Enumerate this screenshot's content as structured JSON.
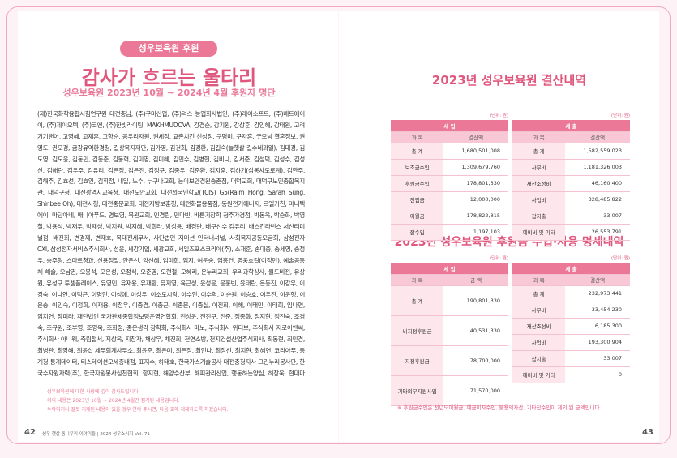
{
  "left": {
    "badge": "성우보육원 후원",
    "title": "감사가 흐르는 울타리",
    "subtitle": "성우보육원 2023년 10월 ~ 2024년 4월 후원자 명단",
    "donors": "(재)한국화학융합시험연구원 대전충남, (주)구마산업, (주)덕스 농업회사법인, (주)레이소프트, (주)베트에이이, (주)제이오텍, (주)코엔, (주)한빛라이팅, MAKHMUDOVA, 강경순, 강기원, 강상훈, 강인혜, 강태원, 고려기기랜어, 고영혜, 고재훈, 고향순, 공우리자원, 권세정, 교촌치킨 신성점, 구명미, 구자흔, 굿모닝 결혼정보, 권영도, 권오경, 금강유역환경청, 길상복지재단, 김가영, 김건희, 김경환, 김길숙(늘햇살 길수네과일), 김대경, 김도영, 김도윤, 김동민, 김동춘, 김동혁, 김미영, 김미혜, 김민수, 김병현, 김비나, 김서준, 김성덕, 김성수, 김성신, 김애란, 김우주, 김유리, 김은정, 김은진, 김정구, 김종우, 김준환, 김지훈, 김하기(심봉사도로계), 김한주, 김해주, 김효선, 김효인, 김휘정, 내일, 노수, 누구나교회, 눈이보안경원송촌점, 대덕교회, 대덕구노인종합복지관, 대덕구청, 대전광역시교육청, 대전도안교회, 대전외국인학교(TCIS) G5(Raim Hong, Sarah Sung, Shinbee Oh), 대전시청, 대전중문교회, 대전지방보훈청, 대전화물용품점, 동원전기에너지, 르엘키친, 마너텍에이, 마당아네, 매니아푸드, 명보영, 목원교회, 민경림, 민다빈, 바른기장학 청주가경점, 박동욱, 박순화, 박영철, 박용식, 박재우, 박재성, 박지원, 박지혜, 박희라, 방성용, 배경란, 배구선수 김유리, 배스킨라빈스 서산터미널점, 배진희, 변경제, 변재호, 복대전세무서, 사단법인 지미션 인터내셔널, 사회복지공동모금회, 삼성전자 CXI, 삼성전자서비스주식회사, 성윤, 세강기업, 세광교회, 세일즈포스코리아(주), 소재훈, 손대중, 송세영, 송정우, 송주형, 스마트청과, 신용정일, 안은선, 양선혜, 엄미희, 엄지, 여운송, 염홍건, 영웅호걸(이정민), 예술공동체 해술, 오남권, 오봉석, 오은성, 오정식, 오준영, 오현철, 오혜리, 온누리교회, 우리과학상사, 월드비전, 유상원, 유성구 투셈플레이스, 유영민, 유재용, 유재환, 유지영, 육근성, 윤성윤, 윤홍빈, 윤태란, 은동진, 이강우, 이경숙, 이나연, 이덕근, 이명인, 이성애, 이성우, 이소도시락, 이수인, 이수혁, 이순원, 이승호, 이우진, 이윤행, 이은송, 이인숙, 이정희, 이재용, 이정우, 이종경, 이종근, 이종문, 이종실, 이진희, 이혜, 이태민, 이태희, 임나연, 임지연, 장미라, 재단법인 국가관세종합정보망운영연합회, 전상윤, 전진구, 전준, 정종화, 정지현, 정진숙, 조경숙, 조규원, 조부영, 조영욱, 조희정, 종은생각 장학회, 주식회사 마노, 주식회사 위티브, 주식회사 지로이엔씨, 주식회사 아니웨, 축림철서, 지상욱, 지장자, 채상우, 채진희, 천연소방, 천지건설산업주식회사, 최동현, 최민경, 최병관, 최영해, 최윤섭 세무회계사무소, 최윤준, 최은미, 최은정, 최인나, 최정선, 최지현, 최혜연, 코리아푸, 통계청 통계데이터, 티스테이션오세종내점, 표지수, 하태호, 한국가스기술공사 대전충청지사 그린누리봉사단, 한국수자원자력(주), 한국자원봉사실천협회, 항지현, 해양수산부, 해피관리산업, 행동하는양심, 허장욱, 현대마트, 형제크레인, 홈스마일이불집, 환경부, 황성호, 황효주, 효인니까본",
    "notes": [
      "성우보육원에 대한 사랑에 깊이 감사드립니다.",
      "위의 내용은 2023년 10월 ~ 2024년 4월간 집계된 내용입니다.",
      "누락되거나 잘못 기재된 내용이 있을 경우 연락 주시면, 다음 호에 게재하도록 하겠습니다."
    ]
  },
  "right": {
    "budget": {
      "title": "2023년 성우보육원 결산내역",
      "income": {
        "unit": "(단위: 원)",
        "header": "세 입",
        "columns": [
          "과 목",
          "결산액"
        ],
        "rows": [
          [
            "총 계",
            "1,680,501,008"
          ],
          [
            "보조금수입",
            "1,309,679,760"
          ],
          [
            "후원금수입",
            "178,801,330"
          ],
          [
            "전입금",
            "12,000,000"
          ],
          [
            "이월금",
            "178,822,815"
          ],
          [
            "잡수입",
            "1,197,103"
          ]
        ]
      },
      "expense": {
        "unit": "(단위: 원)",
        "header": "세 출",
        "columns": [
          "과 목",
          "결산액"
        ],
        "rows": [
          [
            "총 계",
            "1,582,559,023"
          ],
          [
            "사무비",
            "1,181,326,003"
          ],
          [
            "재산조성비",
            "46,160,400"
          ],
          [
            "사업비",
            "328,485,822"
          ],
          [
            "잡지출",
            "33,007"
          ],
          [
            "예비비 및 기타",
            "26,553,791"
          ]
        ]
      }
    },
    "donations": {
      "title": "2023년 성우보육원 후원금 수입·사용 명세내역",
      "income": {
        "unit": "(단위: 원)",
        "header": "세 입",
        "columns": [
          "과 목",
          "금 액"
        ],
        "rows": [
          [
            "총 계",
            "190,801,330"
          ],
          [
            "비지정후원금",
            "40,531,330"
          ],
          [
            "지정후원금",
            "78,700,000"
          ],
          [
            "기타외부지원사업",
            "71,570,000"
          ]
        ]
      },
      "expense": {
        "unit": "(단위: 원)",
        "header": "세 출",
        "columns": [
          "과 목",
          "결산액"
        ],
        "rows": [
          [
            "총 계",
            "232,973,441"
          ],
          [
            "사무비",
            "33,454,230"
          ],
          [
            "재산조성비",
            "6,185,300"
          ],
          [
            "사업비",
            "193,300,904"
          ],
          [
            "잡지출",
            "33,007"
          ],
          [
            "예비비 및 기타",
            "0"
          ]
        ]
      }
    },
    "note": "※ 후원금수입은 전년도이월금, 예금이자수입, 불용액자산, 기타잡수입이 제외 된 금액입니다."
  },
  "footer": {
    "left_page": "42",
    "left_text": "성우 햇살 통니우리 이야기들 | 2024 성우소식지 Vol. 71",
    "right_page": "43"
  }
}
